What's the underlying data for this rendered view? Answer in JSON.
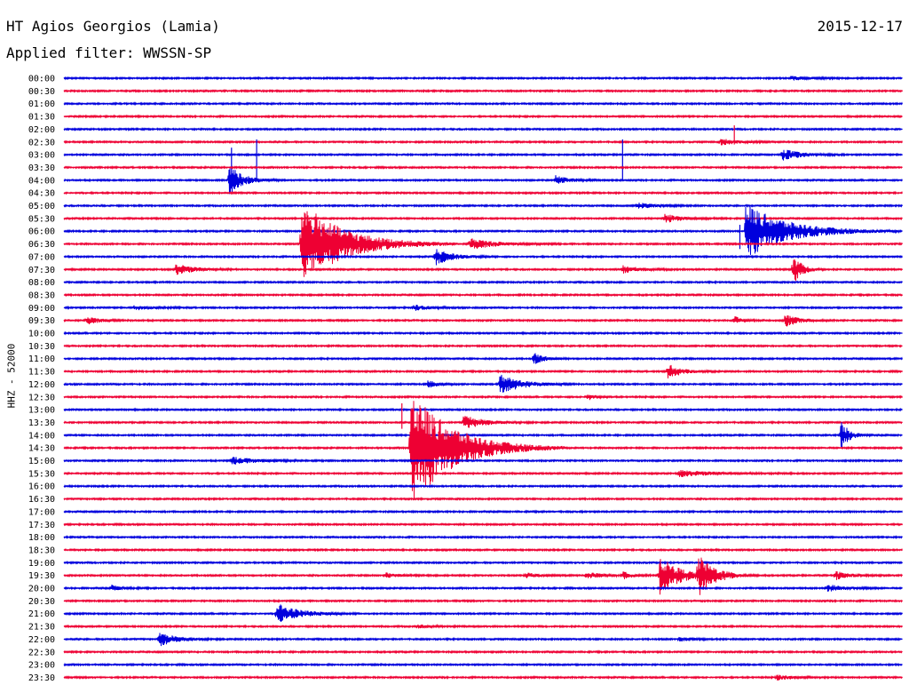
{
  "header": {
    "station": "HT Agios Georgios (Lamia)",
    "filter": "Applied filter: WWSSN-SP",
    "date": "2015-12-17"
  },
  "chart_data": {
    "type": "line",
    "title": "HT Agios Georgios (Lamia)",
    "subtitle": "Applied filter: WWSSN-SP",
    "date": "2015-12-17",
    "ylabel": "HHZ - 52000",
    "xlabel": "",
    "trace_interval_minutes": 30,
    "trace_length_minutes": 30,
    "colors": {
      "even": "#0000dd",
      "odd": "#ee0033"
    },
    "rows": [
      "00:00",
      "00:30",
      "01:00",
      "01:30",
      "02:00",
      "02:30",
      "03:00",
      "03:30",
      "04:00",
      "04:30",
      "05:00",
      "05:30",
      "06:00",
      "06:30",
      "07:00",
      "07:30",
      "08:00",
      "08:30",
      "09:00",
      "09:30",
      "10:00",
      "10:30",
      "11:00",
      "11:30",
      "12:00",
      "12:30",
      "13:00",
      "13:30",
      "14:00",
      "14:30",
      "15:00",
      "15:30",
      "16:00",
      "16:30",
      "17:00",
      "17:30",
      "18:00",
      "18:30",
      "19:00",
      "19:30",
      "20:00",
      "20:30",
      "21:00",
      "21:30",
      "22:00",
      "22:30",
      "23:00",
      "23:30"
    ],
    "events": [
      {
        "row": "00:00",
        "minute": 26.0,
        "amplitude": 0.15,
        "duration": 1.2
      },
      {
        "row": "02:30",
        "minute": 23.5,
        "amplitude": 0.25,
        "duration": 1.0
      },
      {
        "row": "03:00",
        "minute": 25.7,
        "amplitude": 0.5,
        "duration": 1.0
      },
      {
        "row": "04:00",
        "minute": 5.9,
        "amplitude": 1.3,
        "duration": 0.8
      },
      {
        "row": "04:00",
        "minute": 17.6,
        "amplitude": 0.35,
        "duration": 0.8
      },
      {
        "row": "05:00",
        "minute": 20.5,
        "amplitude": 0.25,
        "duration": 1.0
      },
      {
        "row": "05:30",
        "minute": 21.5,
        "amplitude": 0.35,
        "duration": 1.0
      },
      {
        "row": "06:00",
        "minute": 24.4,
        "amplitude": 2.2,
        "duration": 2.5
      },
      {
        "row": "06:30",
        "minute": 8.5,
        "amplitude": 3.5,
        "duration": 2.5
      },
      {
        "row": "06:30",
        "minute": 14.5,
        "amplitude": 0.45,
        "duration": 1.5
      },
      {
        "row": "07:00",
        "minute": 13.3,
        "amplitude": 0.65,
        "duration": 1.0
      },
      {
        "row": "07:30",
        "minute": 4.0,
        "amplitude": 0.45,
        "duration": 1.0
      },
      {
        "row": "07:30",
        "minute": 20.0,
        "amplitude": 0.3,
        "duration": 1.0
      },
      {
        "row": "07:30",
        "minute": 26.1,
        "amplitude": 1.3,
        "duration": 0.5
      },
      {
        "row": "09:00",
        "minute": 2.5,
        "amplitude": 0.2,
        "duration": 1.0
      },
      {
        "row": "09:00",
        "minute": 12.5,
        "amplitude": 0.25,
        "duration": 0.8
      },
      {
        "row": "09:30",
        "minute": 0.8,
        "amplitude": 0.3,
        "duration": 0.8
      },
      {
        "row": "09:30",
        "minute": 24.0,
        "amplitude": 0.3,
        "duration": 0.5
      },
      {
        "row": "09:30",
        "minute": 25.8,
        "amplitude": 0.5,
        "duration": 0.8
      },
      {
        "row": "11:00",
        "minute": 16.8,
        "amplitude": 0.5,
        "duration": 0.6
      },
      {
        "row": "11:30",
        "minute": 21.6,
        "amplitude": 0.6,
        "duration": 0.8
      },
      {
        "row": "12:00",
        "minute": 13.0,
        "amplitude": 0.3,
        "duration": 0.6
      },
      {
        "row": "12:00",
        "minute": 15.6,
        "amplitude": 0.75,
        "duration": 1.3
      },
      {
        "row": "12:30",
        "minute": 18.7,
        "amplitude": 0.3,
        "duration": 0.5
      },
      {
        "row": "13:30",
        "minute": 14.3,
        "amplitude": 0.55,
        "duration": 1.2
      },
      {
        "row": "14:00",
        "minute": 27.8,
        "amplitude": 1.2,
        "duration": 0.5
      },
      {
        "row": "14:30",
        "minute": 12.4,
        "amplitude": 4.8,
        "duration": 2.5
      },
      {
        "row": "15:00",
        "minute": 6.0,
        "amplitude": 0.3,
        "duration": 1.5
      },
      {
        "row": "15:30",
        "minute": 22.0,
        "amplitude": 0.25,
        "duration": 2.0
      },
      {
        "row": "19:30",
        "minute": 11.5,
        "amplitude": 0.2,
        "duration": 0.8
      },
      {
        "row": "19:30",
        "minute": 16.5,
        "amplitude": 0.2,
        "duration": 0.8
      },
      {
        "row": "19:30",
        "minute": 18.7,
        "amplitude": 0.3,
        "duration": 0.8
      },
      {
        "row": "19:30",
        "minute": 20.0,
        "amplitude": 0.3,
        "duration": 0.5
      },
      {
        "row": "19:30",
        "minute": 21.3,
        "amplitude": 1.6,
        "duration": 1.2
      },
      {
        "row": "19:30",
        "minute": 22.7,
        "amplitude": 1.5,
        "duration": 1.0
      },
      {
        "row": "19:30",
        "minute": 27.6,
        "amplitude": 0.35,
        "duration": 0.8
      },
      {
        "row": "20:00",
        "minute": 1.7,
        "amplitude": 0.25,
        "duration": 0.6
      },
      {
        "row": "20:00",
        "minute": 27.3,
        "amplitude": 0.3,
        "duration": 1.0
      },
      {
        "row": "21:00",
        "minute": 7.6,
        "amplitude": 0.85,
        "duration": 1.3
      },
      {
        "row": "21:30",
        "minute": 12.6,
        "amplitude": 0.15,
        "duration": 0.8
      },
      {
        "row": "22:00",
        "minute": 3.4,
        "amplitude": 0.55,
        "duration": 1.0
      },
      {
        "row": "22:00",
        "minute": 22.0,
        "amplitude": 0.15,
        "duration": 0.8
      },
      {
        "row": "23:30",
        "minute": 25.5,
        "amplitude": 0.2,
        "duration": 1.0
      }
    ],
    "spikes": [
      {
        "row": "03:00",
        "minute": 6.0,
        "amplitude_up": 0.55,
        "amplitude_down": 2.5
      },
      {
        "row": "03:00",
        "minute": 6.9,
        "amplitude_up": 1.2,
        "amplitude_down": 1.9
      },
      {
        "row": "03:00",
        "minute": 20.0,
        "amplitude_up": 1.2,
        "amplitude_down": 2.1
      },
      {
        "row": "02:30",
        "minute": 24.0,
        "amplitude_up": 1.3,
        "amplitude_down": 0.2
      },
      {
        "row": "06:00",
        "minute": 24.2,
        "amplitude_up": 0.5,
        "amplitude_down": 1.4
      },
      {
        "row": "13:30",
        "minute": 12.1,
        "amplitude_up": 1.5,
        "amplitude_down": 0.5
      }
    ]
  }
}
